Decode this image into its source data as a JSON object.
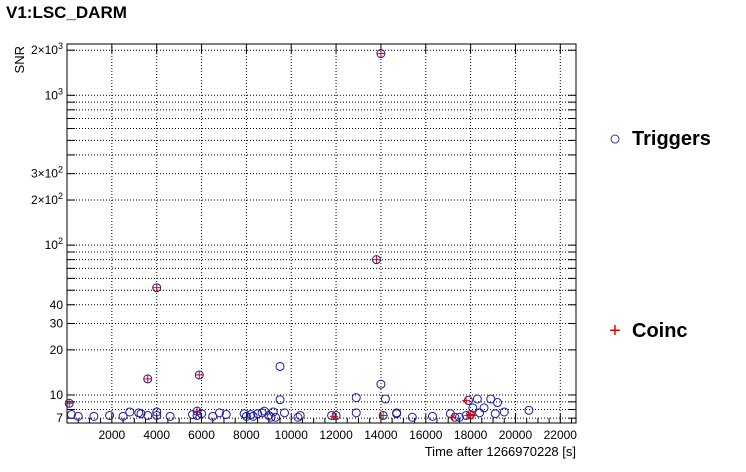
{
  "chart_data": {
    "type": "scatter",
    "title": "V1:LSC_DARM",
    "xlabel": "Time after 1266970228 [s]",
    "ylabel": "SNR",
    "xlim": [
      0,
      22700
    ],
    "ylim": [
      6.5,
      2200
    ],
    "y_scale": "log",
    "grid": true,
    "legend_placement": "right",
    "x_ticks": [
      2000,
      4000,
      6000,
      8000,
      10000,
      12000,
      14000,
      16000,
      18000,
      20000,
      22000
    ],
    "x_tick_labels": [
      "2000",
      "4000",
      "6000",
      "8000",
      "10000",
      "12000",
      "14000",
      "16000",
      "18000",
      "20000",
      "22000"
    ],
    "y_ticks": [
      7,
      10,
      20,
      30,
      40,
      100,
      200,
      300,
      1000,
      2000
    ],
    "y_tick_labels": [
      "7",
      "10",
      "20",
      "30",
      "40",
      "10²",
      "2×10²",
      "3×10²",
      "10³",
      "2×10³"
    ],
    "series": [
      {
        "name": "Triggers",
        "marker": "open-circle",
        "color": "#1a1aa0",
        "points": [
          [
            100,
            8.8
          ],
          [
            200,
            7.4
          ],
          [
            500,
            7.2
          ],
          [
            1200,
            7.2
          ],
          [
            1900,
            7.3
          ],
          [
            2500,
            7.2
          ],
          [
            2800,
            7.7
          ],
          [
            3200,
            7.6
          ],
          [
            3300,
            7.5
          ],
          [
            3600,
            7.3
          ],
          [
            3600,
            12.8
          ],
          [
            4000,
            7.7
          ],
          [
            4000,
            7.3
          ],
          [
            4000,
            52
          ],
          [
            4600,
            7.2
          ],
          [
            5600,
            7.4
          ],
          [
            5800,
            7.8
          ],
          [
            5800,
            7.3
          ],
          [
            6000,
            7.5
          ],
          [
            5900,
            13.6
          ],
          [
            6500,
            7.2
          ],
          [
            6800,
            7.6
          ],
          [
            7100,
            7.4
          ],
          [
            7900,
            7.5
          ],
          [
            8000,
            7.2
          ],
          [
            8200,
            7.4
          ],
          [
            8300,
            7.2
          ],
          [
            8500,
            7.5
          ],
          [
            8700,
            7.6
          ],
          [
            8800,
            7.8
          ],
          [
            9000,
            7.3
          ],
          [
            9100,
            7.1
          ],
          [
            9200,
            7.7
          ],
          [
            9300,
            7.1
          ],
          [
            9500,
            9.3
          ],
          [
            9500,
            15.5
          ],
          [
            9700,
            7.6
          ],
          [
            10300,
            7.1
          ],
          [
            10400,
            7.3
          ],
          [
            11800,
            7.3
          ],
          [
            12000,
            7.3
          ],
          [
            12900,
            9.6
          ],
          [
            12900,
            7.6
          ],
          [
            13800,
            80
          ],
          [
            14000,
            1900
          ],
          [
            14000,
            11.8
          ],
          [
            14100,
            7.3
          ],
          [
            14200,
            9.4
          ],
          [
            14700,
            7.6
          ],
          [
            14700,
            7.5
          ],
          [
            15400,
            7.1
          ],
          [
            16300,
            7.2
          ],
          [
            17100,
            7.5
          ],
          [
            17300,
            7.1
          ],
          [
            17500,
            7.1
          ],
          [
            17800,
            7.3
          ],
          [
            17900,
            9.2
          ],
          [
            18000,
            7.4
          ],
          [
            18100,
            8.2
          ],
          [
            18300,
            9.4
          ],
          [
            18400,
            7.6
          ],
          [
            18600,
            8.2
          ],
          [
            18900,
            9.4
          ],
          [
            19100,
            7.5
          ],
          [
            19200,
            8.9
          ],
          [
            19500,
            7.7
          ],
          [
            20600,
            7.9
          ]
        ]
      },
      {
        "name": "Coinc",
        "marker": "plus",
        "color": "#dd0000",
        "points": [
          [
            100,
            8.8
          ],
          [
            3600,
            12.8
          ],
          [
            4000,
            52
          ],
          [
            5900,
            13.6
          ],
          [
            5800,
            7.8
          ],
          [
            11900,
            7.2
          ],
          [
            13800,
            80
          ],
          [
            14000,
            1900
          ],
          [
            14100,
            7.3
          ],
          [
            17200,
            7.1
          ],
          [
            17800,
            9.2
          ],
          [
            17900,
            7.3
          ],
          [
            18000,
            7.4
          ],
          [
            18100,
            7.3
          ]
        ]
      }
    ]
  },
  "legend": {
    "triggers_label": "Triggers",
    "triggers_symbol": "○",
    "coinc_label": "Coinc",
    "coinc_symbol": "+"
  }
}
